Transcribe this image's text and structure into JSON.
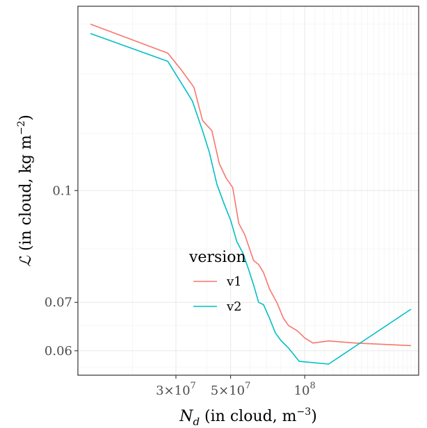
{
  "chart_data": {
    "type": "line",
    "title": "",
    "xlabel": "N_d (in cloud, m^-3)",
    "ylabel": "ℒ (in cloud, kg m^-2)",
    "xscale": "log",
    "yscale": "log",
    "xlim": [
      12000000,
      290000000
    ],
    "ylim": [
      0.0555,
      0.18
    ],
    "grid": true,
    "x_ticks": [
      {
        "value": 30000000,
        "mantissa": "3",
        "exponent": "7"
      },
      {
        "value": 50000000,
        "mantissa": "5",
        "exponent": "7"
      },
      {
        "value": 100000000,
        "mantissa": "",
        "exponent": "8"
      }
    ],
    "y_ticks": [
      {
        "value": 0.06,
        "label": "0.06"
      },
      {
        "value": 0.07,
        "label": "0.07"
      },
      {
        "value": 0.1,
        "label": "0.1"
      }
    ],
    "legend": {
      "title": "version",
      "position": "inside-bottom-center"
    },
    "series": [
      {
        "name": "v1",
        "color": "#F8766D",
        "x": [
          13500000,
          27800000,
          31500000,
          35500000,
          38500000,
          42000000,
          45000000,
          48000000,
          51000000,
          54000000,
          57000000,
          62000000,
          65000000,
          68000000,
          72000000,
          77000000,
          82000000,
          86000000,
          93000000,
          100000000,
          108000000,
          125000000,
          160000000,
          270000000
        ],
        "y": [
          0.17,
          0.155,
          0.147,
          0.139,
          0.125,
          0.121,
          0.109,
          0.104,
          0.101,
          0.09,
          0.087,
          0.08,
          0.079,
          0.077,
          0.073,
          0.07,
          0.0665,
          0.065,
          0.064,
          0.0625,
          0.0615,
          0.0619,
          0.0615,
          0.061
        ]
      },
      {
        "name": "v2",
        "color": "#00BFC4",
        "x": [
          13500000,
          27800000,
          31500000,
          35000000,
          38500000,
          41000000,
          44000000,
          47000000,
          50000000,
          53000000,
          56000000,
          59000000,
          62000000,
          65000000,
          68000000,
          72000000,
          76000000,
          80000000,
          86000000,
          95000000,
          125000000,
          270000000
        ],
        "y": [
          0.165,
          0.151,
          0.141,
          0.133,
          0.121,
          0.113,
          0.102,
          0.096,
          0.091,
          0.085,
          0.082,
          0.078,
          0.074,
          0.07,
          0.0695,
          0.0665,
          0.0635,
          0.062,
          0.0605,
          0.058,
          0.0575,
          0.0685
        ]
      }
    ]
  }
}
